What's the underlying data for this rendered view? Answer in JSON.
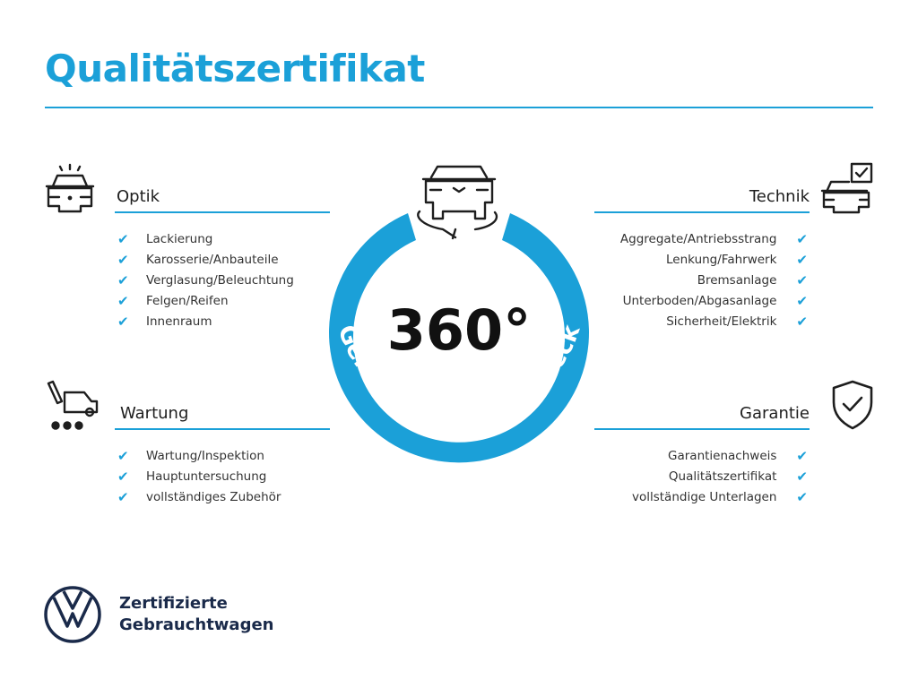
{
  "title": "Qualitätszertifikat",
  "colors": {
    "accent": "#1ba0d8",
    "text": "#1e1e1e",
    "brand": "#1a2a4a"
  },
  "center": {
    "number": "360°",
    "ring_text": "Gebrauchtwagen-Check",
    "icon": "car-rotate-icon"
  },
  "sections": {
    "optik": {
      "heading": "Optik",
      "icon": "car-lights-icon",
      "items": [
        "Lackierung",
        "Karosserie/Anbauteile",
        "Verglasung/Beleuchtung",
        "Felgen/Reifen",
        "Innenraum"
      ]
    },
    "technik": {
      "heading": "Technik",
      "icon": "car-checkbox-icon",
      "items": [
        "Aggregate/Antriebsstrang",
        "Lenkung/Fahrwerk",
        "Bremsanlage",
        "Unterboden/Abgasanlage",
        "Sicherheit/Elektrik"
      ]
    },
    "wartung": {
      "heading": "Wartung",
      "icon": "service-van-icon",
      "items": [
        "Wartung/Inspektion",
        "Hauptuntersuchung",
        "vollständiges Zubehör"
      ]
    },
    "garantie": {
      "heading": "Garantie",
      "icon": "shield-check-icon",
      "items": [
        "Garantienachweis",
        "Qualitätszertifikat",
        "vollständige Unterlagen"
      ]
    }
  },
  "check_glyph": "✔",
  "footer": {
    "line1": "Zertifizierte",
    "line2": "Gebrauchtwagen",
    "logo": "vw-logo"
  }
}
